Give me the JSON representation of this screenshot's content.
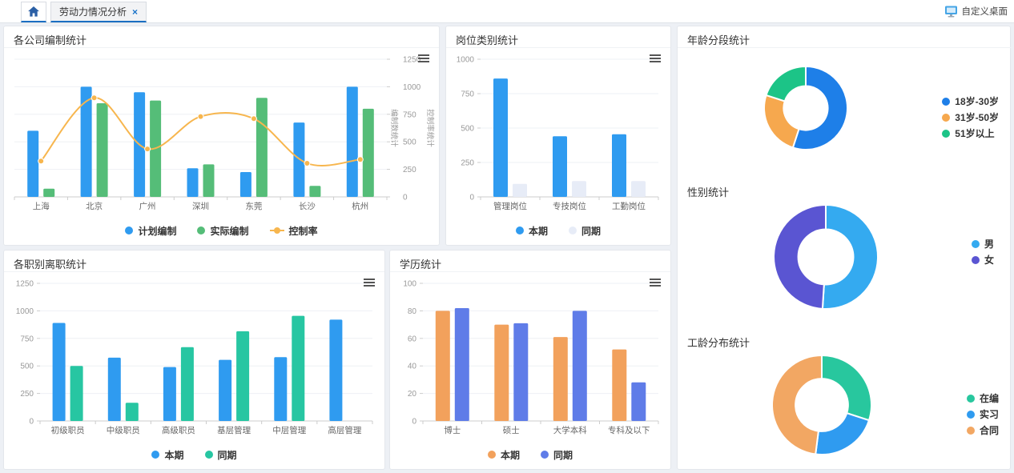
{
  "topbar": {
    "tab_label": "劳动力情况分析",
    "tab_close": "×",
    "desktop_label": "自定义桌面",
    "icons": {
      "home": "home-icon",
      "monitor": "monitor-icon",
      "close": "close-icon",
      "chart_menu": "hamburger-menu-icon"
    },
    "accent_color": "#1b6ec2"
  },
  "chart_data": [
    {
      "id": "company-staffing",
      "type": "bar+line",
      "title": "各公司编制统计",
      "categories": [
        "上海",
        "北京",
        "广州",
        "深圳",
        "东莞",
        "长沙",
        "杭州"
      ],
      "series": [
        {
          "name": "计划编制",
          "kind": "bar",
          "color": "#2f9bf0",
          "values": [
            600,
            1000,
            950,
            260,
            225,
            675,
            1000
          ]
        },
        {
          "name": "实际编制",
          "kind": "bar",
          "color": "#55bd78",
          "values": [
            75,
            850,
            875,
            295,
            900,
            100,
            800
          ]
        },
        {
          "name": "控制率",
          "kind": "line",
          "color": "#f7b64e",
          "values": [
            325,
            900,
            435,
            730,
            710,
            305,
            340
          ]
        }
      ],
      "ylim": [
        0,
        1250
      ],
      "yticks": [
        0,
        250,
        500,
        750,
        1000,
        1250
      ],
      "y_axis_names": [
        "编制数统计",
        "控制率统计"
      ],
      "ticks_side": "right",
      "legend_position": "bottom",
      "grid": true
    },
    {
      "id": "post-category",
      "type": "bar",
      "title": "岗位类别统计",
      "categories": [
        "管理岗位",
        "专技岗位",
        "工勤岗位"
      ],
      "series": [
        {
          "name": "本期",
          "kind": "bar",
          "color": "#2f9bf0",
          "values": [
            860,
            440,
            455
          ]
        },
        {
          "name": "同期",
          "kind": "bar",
          "color": "#e7ecf7",
          "values": [
            95,
            115,
            115
          ]
        }
      ],
      "ylim": [
        0,
        1000
      ],
      "yticks": [
        0,
        250,
        500,
        750,
        1000
      ],
      "ticks_side": "left",
      "legend_position": "bottom",
      "grid": true
    },
    {
      "id": "age-segment",
      "type": "pie",
      "title": "年龄分段统计",
      "labels": [
        "18岁-30岁",
        "31岁-50岁",
        "51岁以上"
      ],
      "values": [
        55,
        25,
        20
      ],
      "colors": [
        "#1e7fe8",
        "#f6a84e",
        "#1cc487"
      ],
      "legend_position": "right"
    },
    {
      "id": "gender",
      "type": "pie",
      "title": "性别统计",
      "labels": [
        "男",
        "女"
      ],
      "values": [
        51,
        49
      ],
      "colors": [
        "#34aaf0",
        "#5a55d2"
      ],
      "legend_position": "right"
    },
    {
      "id": "tenure",
      "type": "pie",
      "title": "工龄分布统计",
      "labels": [
        "在编",
        "实习",
        "合同"
      ],
      "values": [
        30,
        22,
        48
      ],
      "colors": [
        "#28c79e",
        "#2f9bf0",
        "#f2a763"
      ],
      "legend_position": "right"
    },
    {
      "id": "resignation-by-rank",
      "type": "bar",
      "title": "各职别离职统计",
      "categories": [
        "初级职员",
        "中级职员",
        "高级职员",
        "基层管理",
        "中层管理",
        "高层管理"
      ],
      "series": [
        {
          "name": "本期",
          "kind": "bar",
          "color": "#2f9bf0",
          "values": [
            890,
            575,
            490,
            555,
            580,
            920
          ]
        },
        {
          "name": "同期",
          "kind": "bar",
          "color": "#27c6a2",
          "values": [
            500,
            165,
            670,
            815,
            955,
            0
          ]
        }
      ],
      "ylim": [
        0,
        1250
      ],
      "yticks": [
        0,
        250,
        500,
        750,
        1000,
        1250
      ],
      "ticks_side": "left",
      "legend_position": "bottom",
      "grid": true
    },
    {
      "id": "education",
      "type": "bar",
      "title": "学历统计",
      "categories": [
        "博士",
        "硕士",
        "大学本科",
        "专科及以下"
      ],
      "series": [
        {
          "name": "本期",
          "kind": "bar",
          "color": "#f2a15c",
          "values": [
            80,
            70,
            61,
            52
          ]
        },
        {
          "name": "同期",
          "kind": "bar",
          "color": "#5f7ce8",
          "values": [
            82,
            71,
            80,
            28
          ]
        }
      ],
      "ylim": [
        0,
        100
      ],
      "yticks": [
        0,
        20,
        40,
        60,
        80,
        100
      ],
      "ticks_side": "left",
      "legend_position": "bottom",
      "grid": true
    }
  ]
}
